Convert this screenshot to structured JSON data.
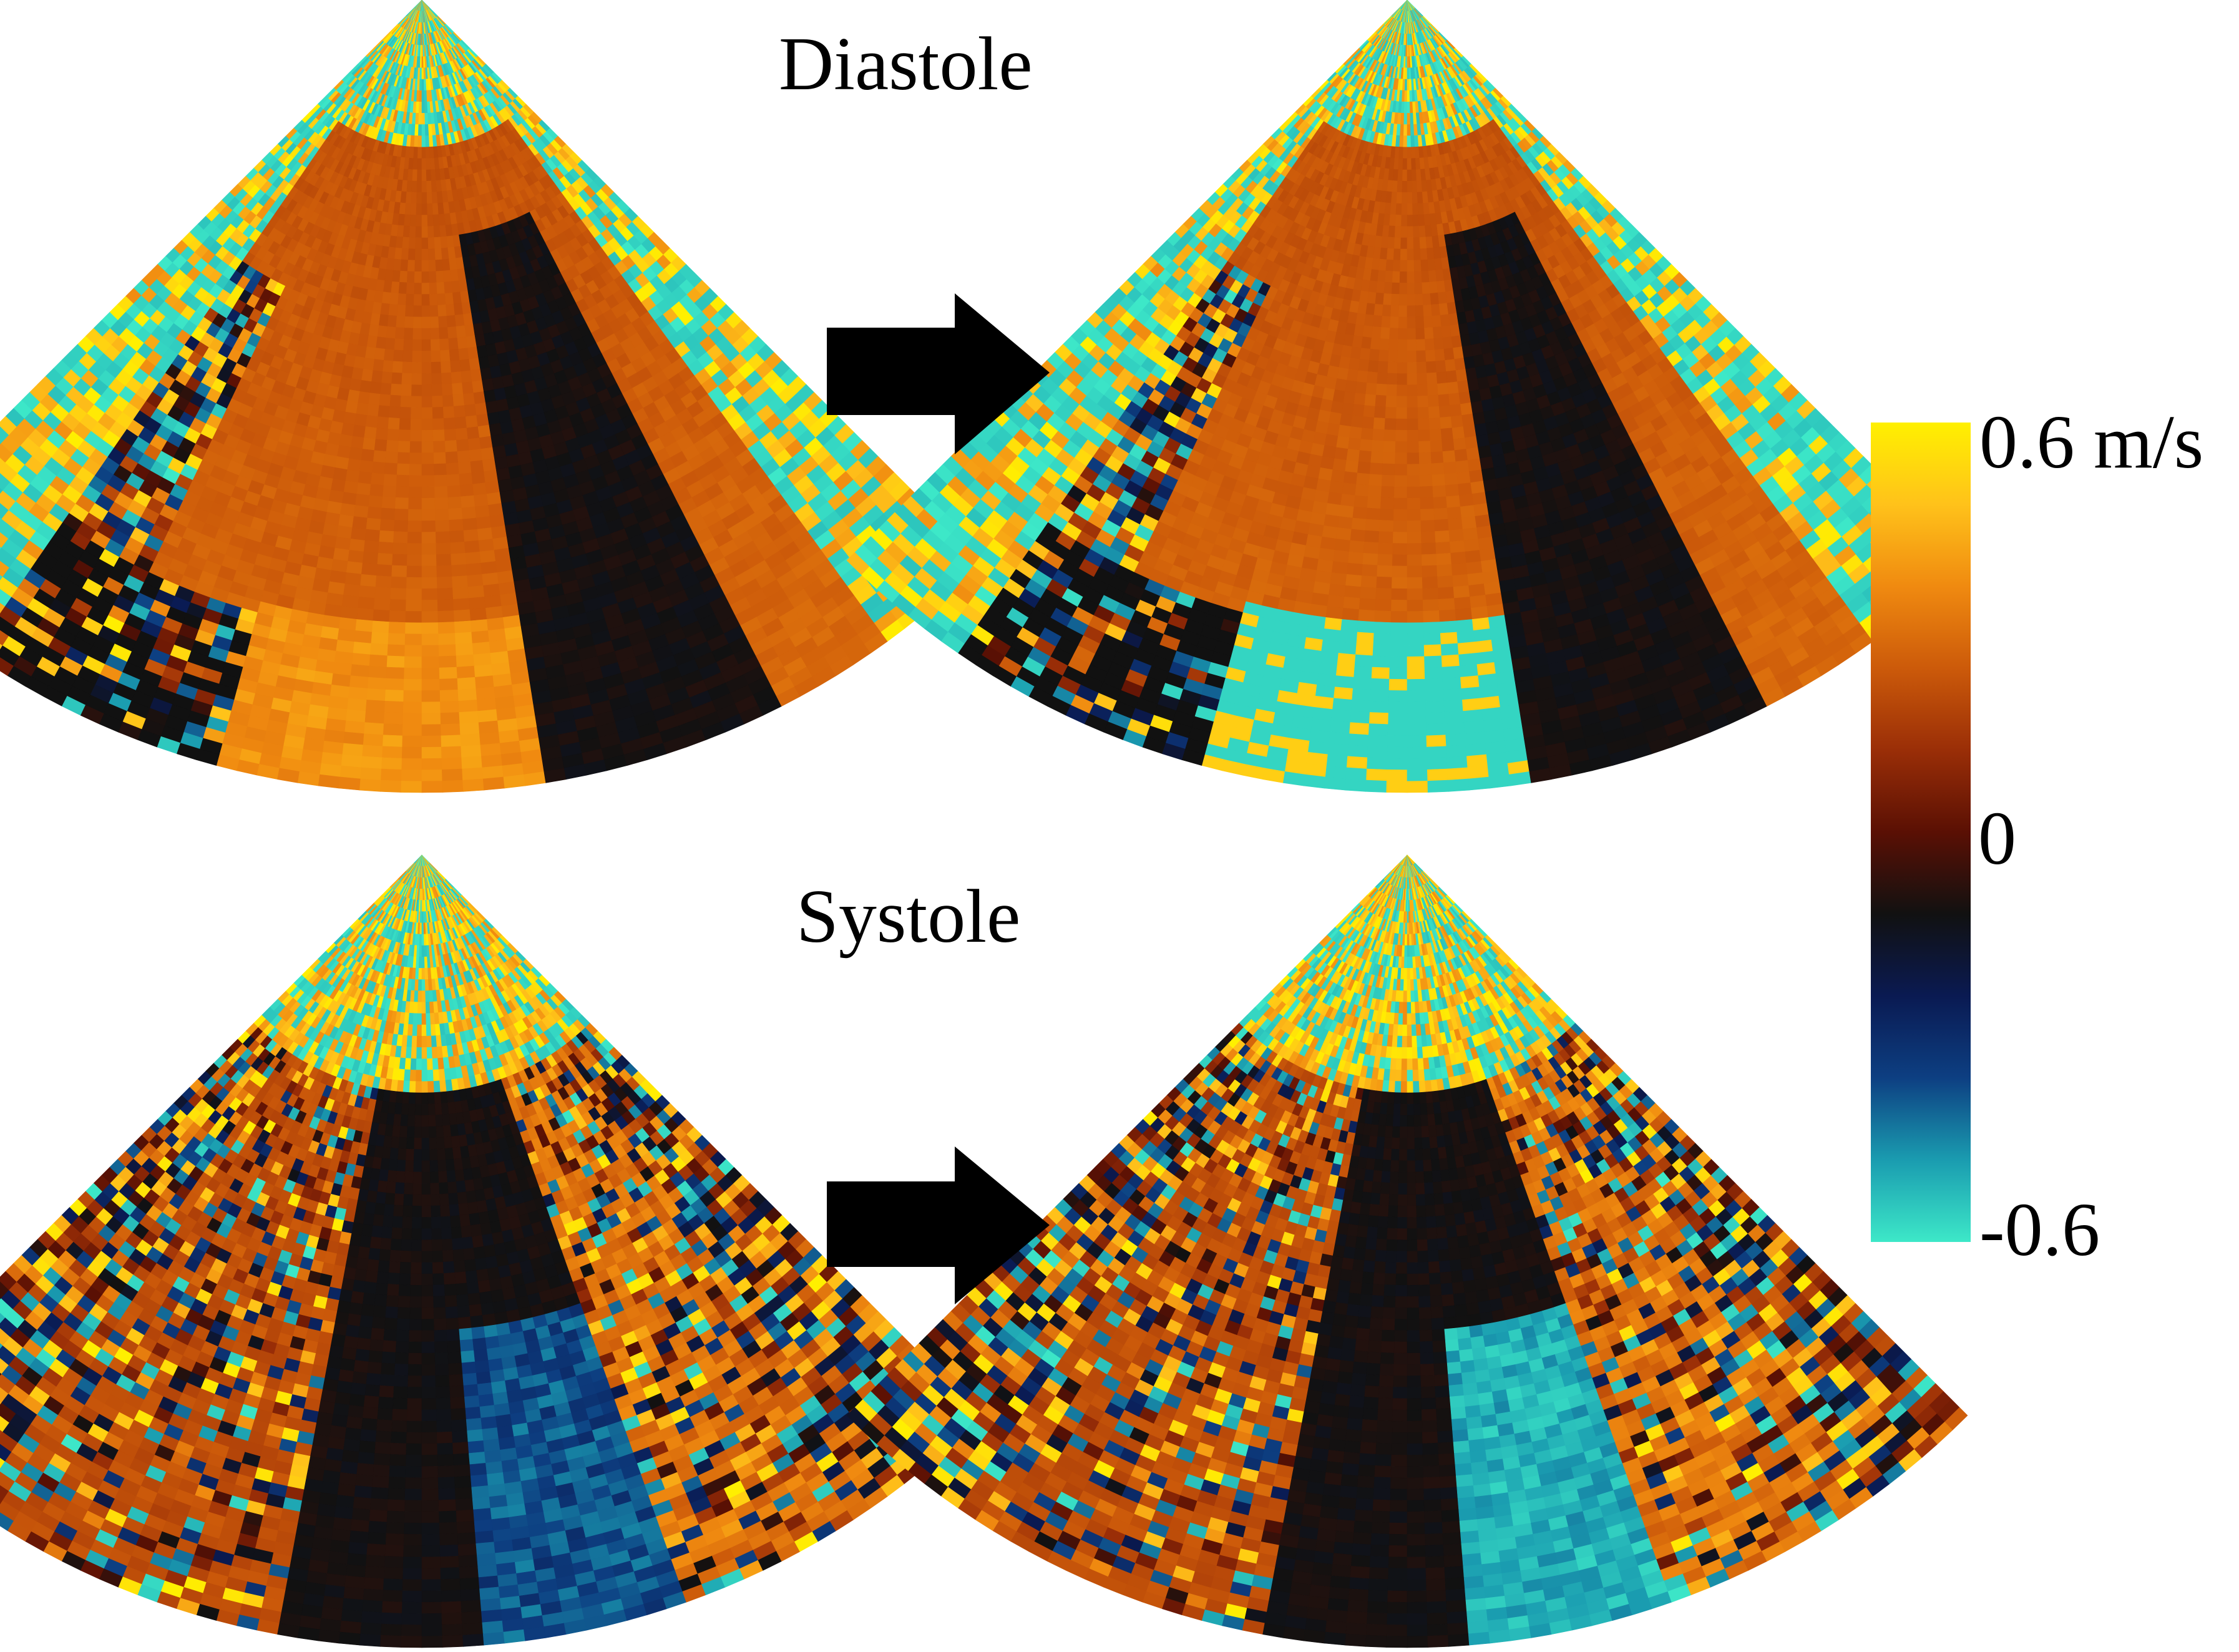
{
  "panels": {
    "diastole_title": "Diastole",
    "systole_title": "Systole"
  },
  "colorbar": {
    "max_label": "0.6 m/s",
    "zero_label": "0",
    "min_label": "-0.6",
    "range": [
      -0.6,
      0.6
    ],
    "stops": [
      "#3de8c8",
      "#1a9cb0",
      "#0d3f82",
      "#0a1a52",
      "#111111",
      "#5a1004",
      "#9a2e07",
      "#cc5a0a",
      "#f08a10",
      "#ffc21a",
      "#fff000"
    ]
  },
  "colors": {
    "arrow": "#000000",
    "background": "#ffffff"
  }
}
